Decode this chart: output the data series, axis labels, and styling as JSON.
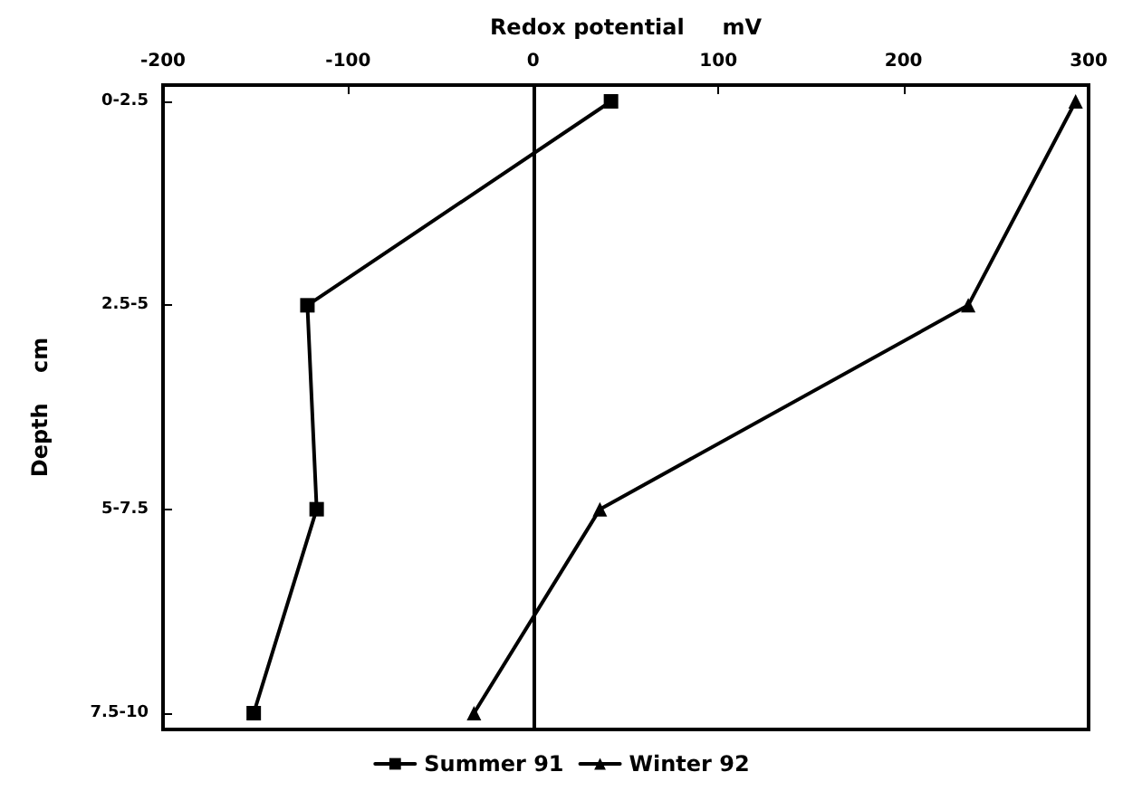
{
  "chart_data": {
    "type": "line",
    "orientation": "horizontal",
    "xlabel": "Redox potential     mV",
    "ylabel": "Depth    cm",
    "categories": [
      "0-2.5",
      "2.5-5",
      "5-7.5",
      "7.5-10"
    ],
    "xlim": [
      -200,
      300
    ],
    "xticks": [
      -200,
      -100,
      0,
      100,
      200,
      300
    ],
    "series": [
      {
        "name": "Summer 91",
        "color": "#000000",
        "marker": "square",
        "values": [
          42,
          -122,
          -117,
          -151
        ]
      },
      {
        "name": "Winter 92",
        "color": "#000000",
        "marker": "triangle",
        "values": [
          293,
          235,
          36,
          -32
        ]
      }
    ],
    "ref_lines": [
      {
        "axis": "x",
        "value": 0,
        "color": "#000000"
      }
    ],
    "grid": false,
    "legend": "bottom",
    "line_style": "solid"
  }
}
